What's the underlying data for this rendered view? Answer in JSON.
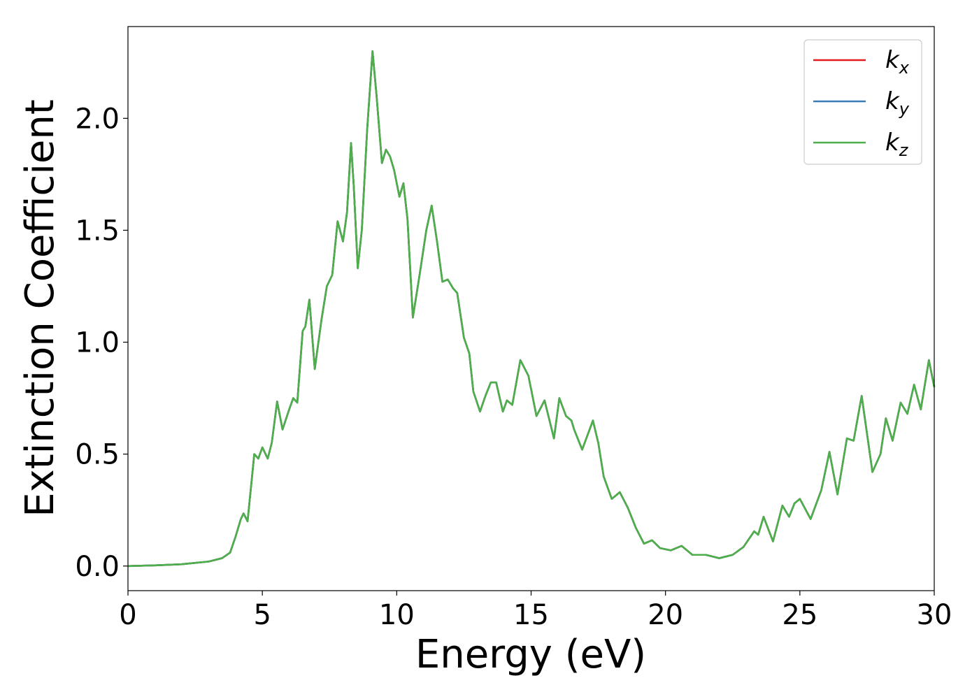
{
  "chart_data": {
    "type": "line",
    "xlabel": "Energy (eV)",
    "ylabel": "Extinction Coefficient",
    "x": [
      0,
      1,
      2,
      3,
      3.5,
      3.8,
      4.0,
      4.2,
      4.3,
      4.45,
      4.7,
      4.85,
      5.0,
      5.2,
      5.35,
      5.55,
      5.75,
      6.0,
      6.15,
      6.3,
      6.5,
      6.6,
      6.75,
      6.95,
      7.2,
      7.4,
      7.6,
      7.8,
      8.0,
      8.15,
      8.3,
      8.4,
      8.55,
      8.7,
      8.9,
      9.1,
      9.25,
      9.45,
      9.6,
      9.75,
      9.9,
      10.1,
      10.25,
      10.4,
      10.6,
      10.85,
      11.1,
      11.3,
      11.5,
      11.7,
      11.9,
      12.1,
      12.25,
      12.5,
      12.7,
      12.85,
      13.1,
      13.3,
      13.5,
      13.7,
      13.95,
      14.1,
      14.3,
      14.6,
      14.9,
      15.2,
      15.5,
      15.85,
      16.05,
      16.3,
      16.5,
      16.6,
      16.9,
      17.3,
      17.5,
      17.7,
      18.0,
      18.3,
      18.6,
      18.9,
      19.2,
      19.5,
      19.8,
      20.2,
      20.6,
      21.0,
      21.5,
      22.0,
      22.5,
      22.9,
      23.3,
      23.45,
      23.65,
      24.0,
      24.35,
      24.6,
      24.8,
      25.0,
      25.4,
      25.8,
      26.1,
      26.4,
      26.75,
      27.0,
      27.3,
      27.7,
      28.0,
      28.2,
      28.45,
      28.75,
      29.0,
      29.25,
      29.5,
      29.8,
      30.0
    ],
    "series": [
      {
        "name": "kx",
        "color": "#e41a1c",
        "values": [
          0,
          0.003,
          0.008,
          0.02,
          0.035,
          0.06,
          0.13,
          0.21,
          0.235,
          0.2,
          0.5,
          0.48,
          0.53,
          0.48,
          0.55,
          0.735,
          0.61,
          0.7,
          0.75,
          0.73,
          1.05,
          1.07,
          1.19,
          0.88,
          1.1,
          1.25,
          1.3,
          1.54,
          1.45,
          1.58,
          1.89,
          1.7,
          1.33,
          1.5,
          1.95,
          2.3,
          2.1,
          1.8,
          1.86,
          1.83,
          1.77,
          1.65,
          1.71,
          1.55,
          1.11,
          1.3,
          1.5,
          1.61,
          1.45,
          1.27,
          1.28,
          1.24,
          1.22,
          1.02,
          0.95,
          0.78,
          0.69,
          0.76,
          0.82,
          0.82,
          0.69,
          0.74,
          0.72,
          0.92,
          0.85,
          0.67,
          0.74,
          0.57,
          0.75,
          0.67,
          0.65,
          0.61,
          0.52,
          0.65,
          0.55,
          0.4,
          0.3,
          0.33,
          0.26,
          0.17,
          0.1,
          0.115,
          0.08,
          0.07,
          0.09,
          0.05,
          0.05,
          0.035,
          0.05,
          0.085,
          0.155,
          0.14,
          0.22,
          0.11,
          0.27,
          0.22,
          0.28,
          0.3,
          0.21,
          0.34,
          0.51,
          0.32,
          0.57,
          0.56,
          0.76,
          0.42,
          0.5,
          0.66,
          0.56,
          0.73,
          0.68,
          0.81,
          0.7,
          0.92,
          0.8
        ]
      },
      {
        "name": "ky",
        "color": "#377eb8",
        "values": [
          0,
          0.003,
          0.008,
          0.02,
          0.035,
          0.06,
          0.13,
          0.21,
          0.235,
          0.2,
          0.5,
          0.48,
          0.53,
          0.48,
          0.55,
          0.735,
          0.61,
          0.7,
          0.75,
          0.73,
          1.05,
          1.07,
          1.19,
          0.88,
          1.1,
          1.25,
          1.3,
          1.54,
          1.45,
          1.58,
          1.89,
          1.7,
          1.33,
          1.5,
          1.95,
          2.3,
          2.1,
          1.8,
          1.86,
          1.83,
          1.77,
          1.65,
          1.71,
          1.55,
          1.11,
          1.3,
          1.5,
          1.61,
          1.45,
          1.27,
          1.28,
          1.24,
          1.22,
          1.02,
          0.95,
          0.78,
          0.69,
          0.76,
          0.82,
          0.82,
          0.69,
          0.74,
          0.72,
          0.92,
          0.85,
          0.67,
          0.74,
          0.57,
          0.75,
          0.67,
          0.65,
          0.61,
          0.52,
          0.65,
          0.55,
          0.4,
          0.3,
          0.33,
          0.26,
          0.17,
          0.1,
          0.115,
          0.08,
          0.07,
          0.09,
          0.05,
          0.05,
          0.035,
          0.05,
          0.085,
          0.155,
          0.14,
          0.22,
          0.11,
          0.27,
          0.22,
          0.28,
          0.3,
          0.21,
          0.34,
          0.51,
          0.32,
          0.57,
          0.56,
          0.76,
          0.42,
          0.5,
          0.66,
          0.56,
          0.73,
          0.68,
          0.81,
          0.7,
          0.92,
          0.8
        ]
      },
      {
        "name": "kz",
        "color": "#4daf4a",
        "values": [
          0,
          0.003,
          0.008,
          0.02,
          0.035,
          0.06,
          0.13,
          0.21,
          0.235,
          0.2,
          0.5,
          0.48,
          0.53,
          0.48,
          0.55,
          0.735,
          0.61,
          0.7,
          0.75,
          0.73,
          1.05,
          1.07,
          1.19,
          0.88,
          1.1,
          1.25,
          1.3,
          1.54,
          1.45,
          1.58,
          1.89,
          1.7,
          1.33,
          1.5,
          1.95,
          2.3,
          2.1,
          1.8,
          1.86,
          1.83,
          1.77,
          1.65,
          1.71,
          1.55,
          1.11,
          1.3,
          1.5,
          1.61,
          1.45,
          1.27,
          1.28,
          1.24,
          1.22,
          1.02,
          0.95,
          0.78,
          0.69,
          0.76,
          0.82,
          0.82,
          0.69,
          0.74,
          0.72,
          0.92,
          0.85,
          0.67,
          0.74,
          0.57,
          0.75,
          0.67,
          0.65,
          0.61,
          0.52,
          0.65,
          0.55,
          0.4,
          0.3,
          0.33,
          0.26,
          0.17,
          0.1,
          0.115,
          0.08,
          0.07,
          0.09,
          0.05,
          0.05,
          0.035,
          0.05,
          0.085,
          0.155,
          0.14,
          0.22,
          0.11,
          0.27,
          0.22,
          0.28,
          0.3,
          0.21,
          0.34,
          0.51,
          0.32,
          0.57,
          0.56,
          0.76,
          0.42,
          0.5,
          0.66,
          0.56,
          0.73,
          0.68,
          0.81,
          0.7,
          0.92,
          0.8
        ]
      }
    ],
    "xlim": [
      0,
      30
    ],
    "xticks": [
      0,
      5,
      10,
      15,
      20,
      25,
      30
    ],
    "ylim": [
      -0.11,
      2.41
    ],
    "yticks": [
      {
        "value": 0,
        "label": "0.0"
      },
      0.5,
      {
        "value": 1,
        "label": "1.0"
      },
      1.5,
      {
        "value": 2,
        "label": "2.0"
      }
    ],
    "legend": "upper right",
    "grid": false
  }
}
